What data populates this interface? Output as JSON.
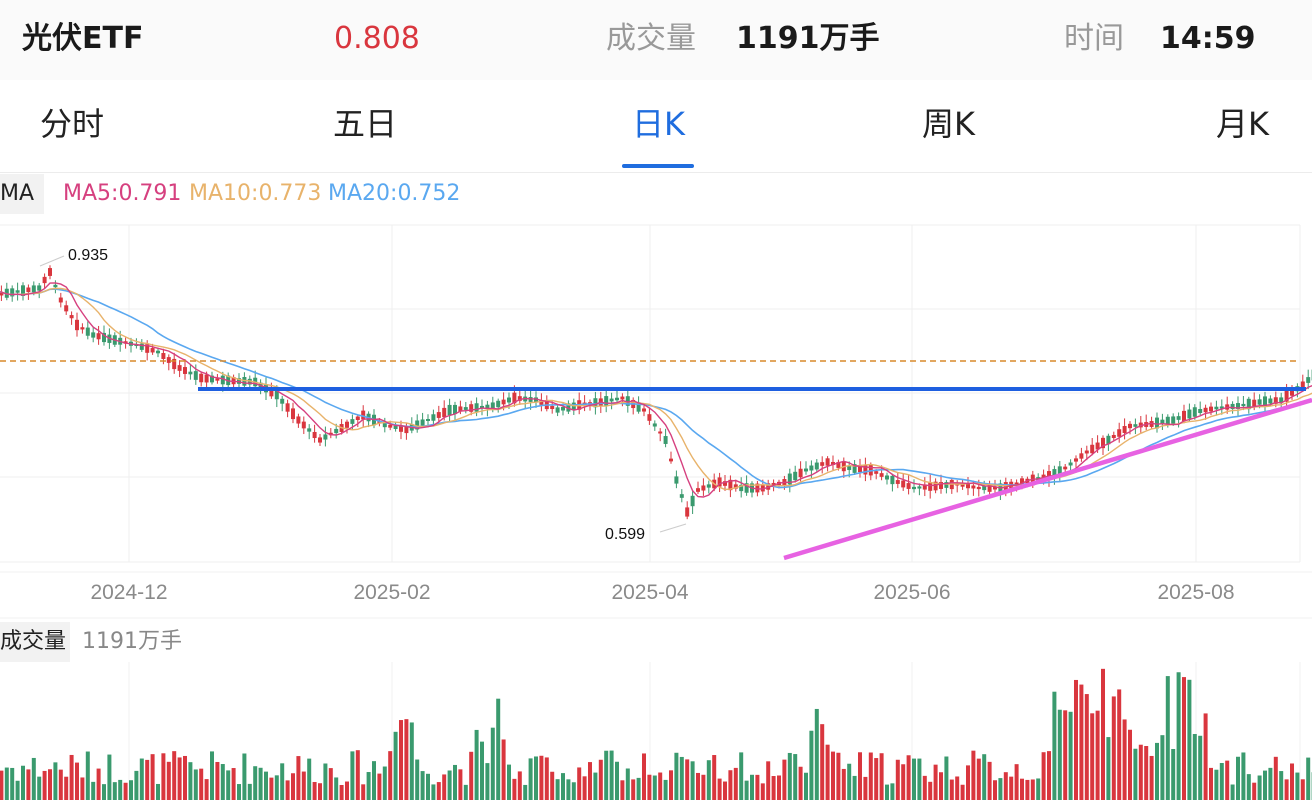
{
  "header": {
    "name": "光伏ETF",
    "price": "0.808",
    "volume_label": "成交量",
    "volume_value": "1191万手",
    "time_label": "时间",
    "time_value": "14:59"
  },
  "tabs": [
    {
      "label": "分时",
      "active": false
    },
    {
      "label": "五日",
      "active": false
    },
    {
      "label": "日K",
      "active": true
    },
    {
      "label": "周K",
      "active": false
    },
    {
      "label": "月K",
      "active": false
    }
  ],
  "ma": {
    "label": "MA",
    "ma5": "MA5:0.791",
    "ma10": "MA10:0.773",
    "ma20": "MA20:0.752"
  },
  "colors": {
    "up": "#d9363e",
    "down": "#3a9a6e",
    "accent": "#1f6ddf",
    "ma5": "#d6407f",
    "ma10": "#e8b36b",
    "ma20": "#5aa8f0",
    "support_line": "#e762e2",
    "resistance_line": "#1e5fe0",
    "dashed_line": "#d98a2b"
  },
  "volume": {
    "label": "成交量",
    "value": "1191万手"
  },
  "chart_data": {
    "type": "candlestick",
    "x_tick_labels": [
      "2024-12",
      "2025-02",
      "2025-04",
      "2025-06",
      "2025-08"
    ],
    "annotations": [
      {
        "text": "0.935",
        "kind": "period-high"
      },
      {
        "text": "0.599",
        "kind": "period-low"
      }
    ],
    "price_range": [
      0.57,
      0.98
    ],
    "legend": "top-left",
    "grid": true
  }
}
